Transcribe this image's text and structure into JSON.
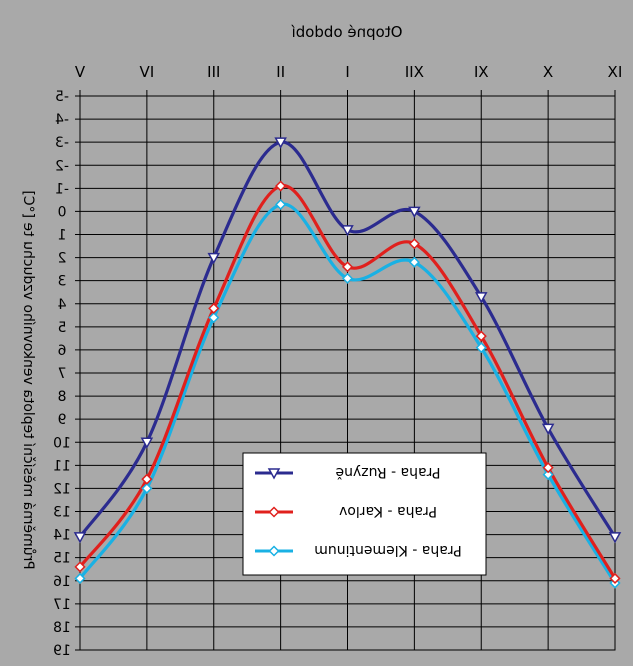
{
  "chart_data": {
    "type": "line",
    "rendering": "mirrored horizontally (text appears reversed); y axis inverted (values increase downward)",
    "title": "Otopné období",
    "ylabel": "Průměrná měsíční teplota venkovního vzduchu te [°C]",
    "xlabel": "",
    "categories": [
      "V",
      "IV",
      "III",
      "II",
      "I",
      "XII",
      "XI",
      "X",
      "IX"
    ],
    "yticks": [
      "-5",
      "-4",
      "-3",
      "-2",
      "-1",
      "0",
      "1",
      "2",
      "3",
      "4",
      "5",
      "6",
      "7",
      "8",
      "9",
      "10",
      "11",
      "12",
      "13",
      "14",
      "15",
      "16",
      "17",
      "18",
      "19"
    ],
    "ylim": [
      -5,
      19
    ],
    "grid": true,
    "legend_position": "lower-center",
    "series": [
      {
        "name": "Praha - Ruzyně",
        "color": "#2b2b8f",
        "marker": "triangle-down",
        "values": [
          14.1,
          10.0,
          2.0,
          -3.0,
          0.8,
          0.0,
          3.7,
          9.4,
          14.1
        ]
      },
      {
        "name": "Praha - Karlov",
        "color": "#e0201d",
        "marker": "diamond",
        "values": [
          15.4,
          11.6,
          4.2,
          -1.1,
          2.4,
          1.4,
          5.4,
          11.1,
          15.9
        ]
      },
      {
        "name": "Praha - Klementinum",
        "color": "#19b1e4",
        "marker": "diamond",
        "values": [
          15.9,
          12.0,
          4.6,
          -0.3,
          2.9,
          2.2,
          5.9,
          11.4,
          16.1
        ]
      }
    ]
  }
}
